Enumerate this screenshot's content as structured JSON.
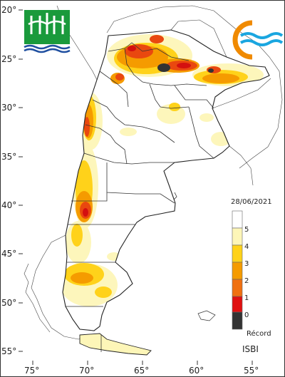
{
  "map": {
    "date": "28/06/2021",
    "index_label": "ISBI",
    "lat_labels": [
      "20°",
      "25°",
      "30°",
      "35°",
      "40°",
      "45°",
      "50°",
      "55°"
    ],
    "lon_labels": [
      "75°",
      "70°",
      "65°",
      "60°",
      "55°"
    ],
    "legend": {
      "items": [
        {
          "label": "5",
          "color": "#ffffff"
        },
        {
          "label": "4",
          "color": "#fdf6b8"
        },
        {
          "label": "3",
          "color": "#ffd21a"
        },
        {
          "label": "2",
          "color": "#f59b00"
        },
        {
          "label": "1",
          "color": "#f07010"
        },
        {
          "label": "0",
          "color": "#e01010"
        },
        {
          "label": "Récord",
          "color": "#333333"
        }
      ]
    },
    "logos": {
      "left": "water-agency-logo",
      "right": "wave-logo"
    }
  }
}
